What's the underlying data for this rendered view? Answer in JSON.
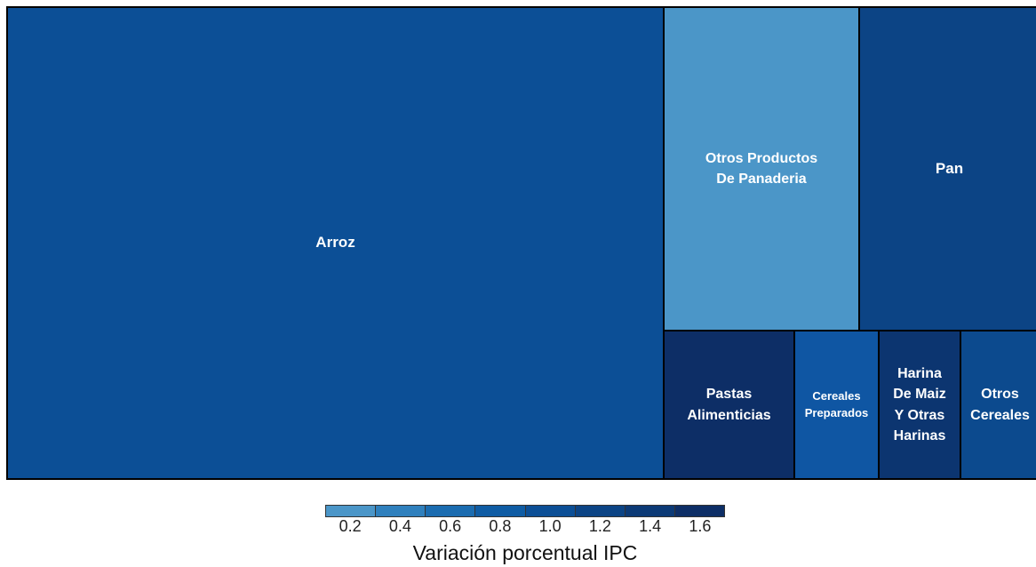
{
  "chart_data": {
    "type": "treemap",
    "tiles": [
      {
        "label": "Arroz",
        "value": 1.05,
        "color": "#0c4f96"
      },
      {
        "label": "Otros Productos\nDe Panaderia",
        "value": 0.22,
        "color": "#4b96c8"
      },
      {
        "label": "Pan",
        "value": 1.3,
        "color": "#0c4485"
      },
      {
        "label": "Pastas\nAlimenticias",
        "value": 1.65,
        "color": "#0d2e66"
      },
      {
        "label": "Cereales\nPreparados",
        "value": 0.85,
        "color": "#0f56a3"
      },
      {
        "label": "Harina\nDe Maiz\nY Otras\nHarinas",
        "value": 1.6,
        "color": "#0c3570"
      },
      {
        "label": "Otros\nCereales",
        "value": 1.2,
        "color": "#0c4a8e"
      }
    ],
    "legend": {
      "title": "Variación porcentual IPC",
      "ticks": [
        "0.2",
        "0.4",
        "0.6",
        "0.8",
        "1.0",
        "1.2",
        "1.4",
        "1.6"
      ],
      "colors": [
        "#4b96c8",
        "#2f80bd",
        "#1b6cb0",
        "#0f5ca4",
        "#0c4f96",
        "#0c4485",
        "#0c3a76",
        "#0d2e66"
      ]
    }
  }
}
